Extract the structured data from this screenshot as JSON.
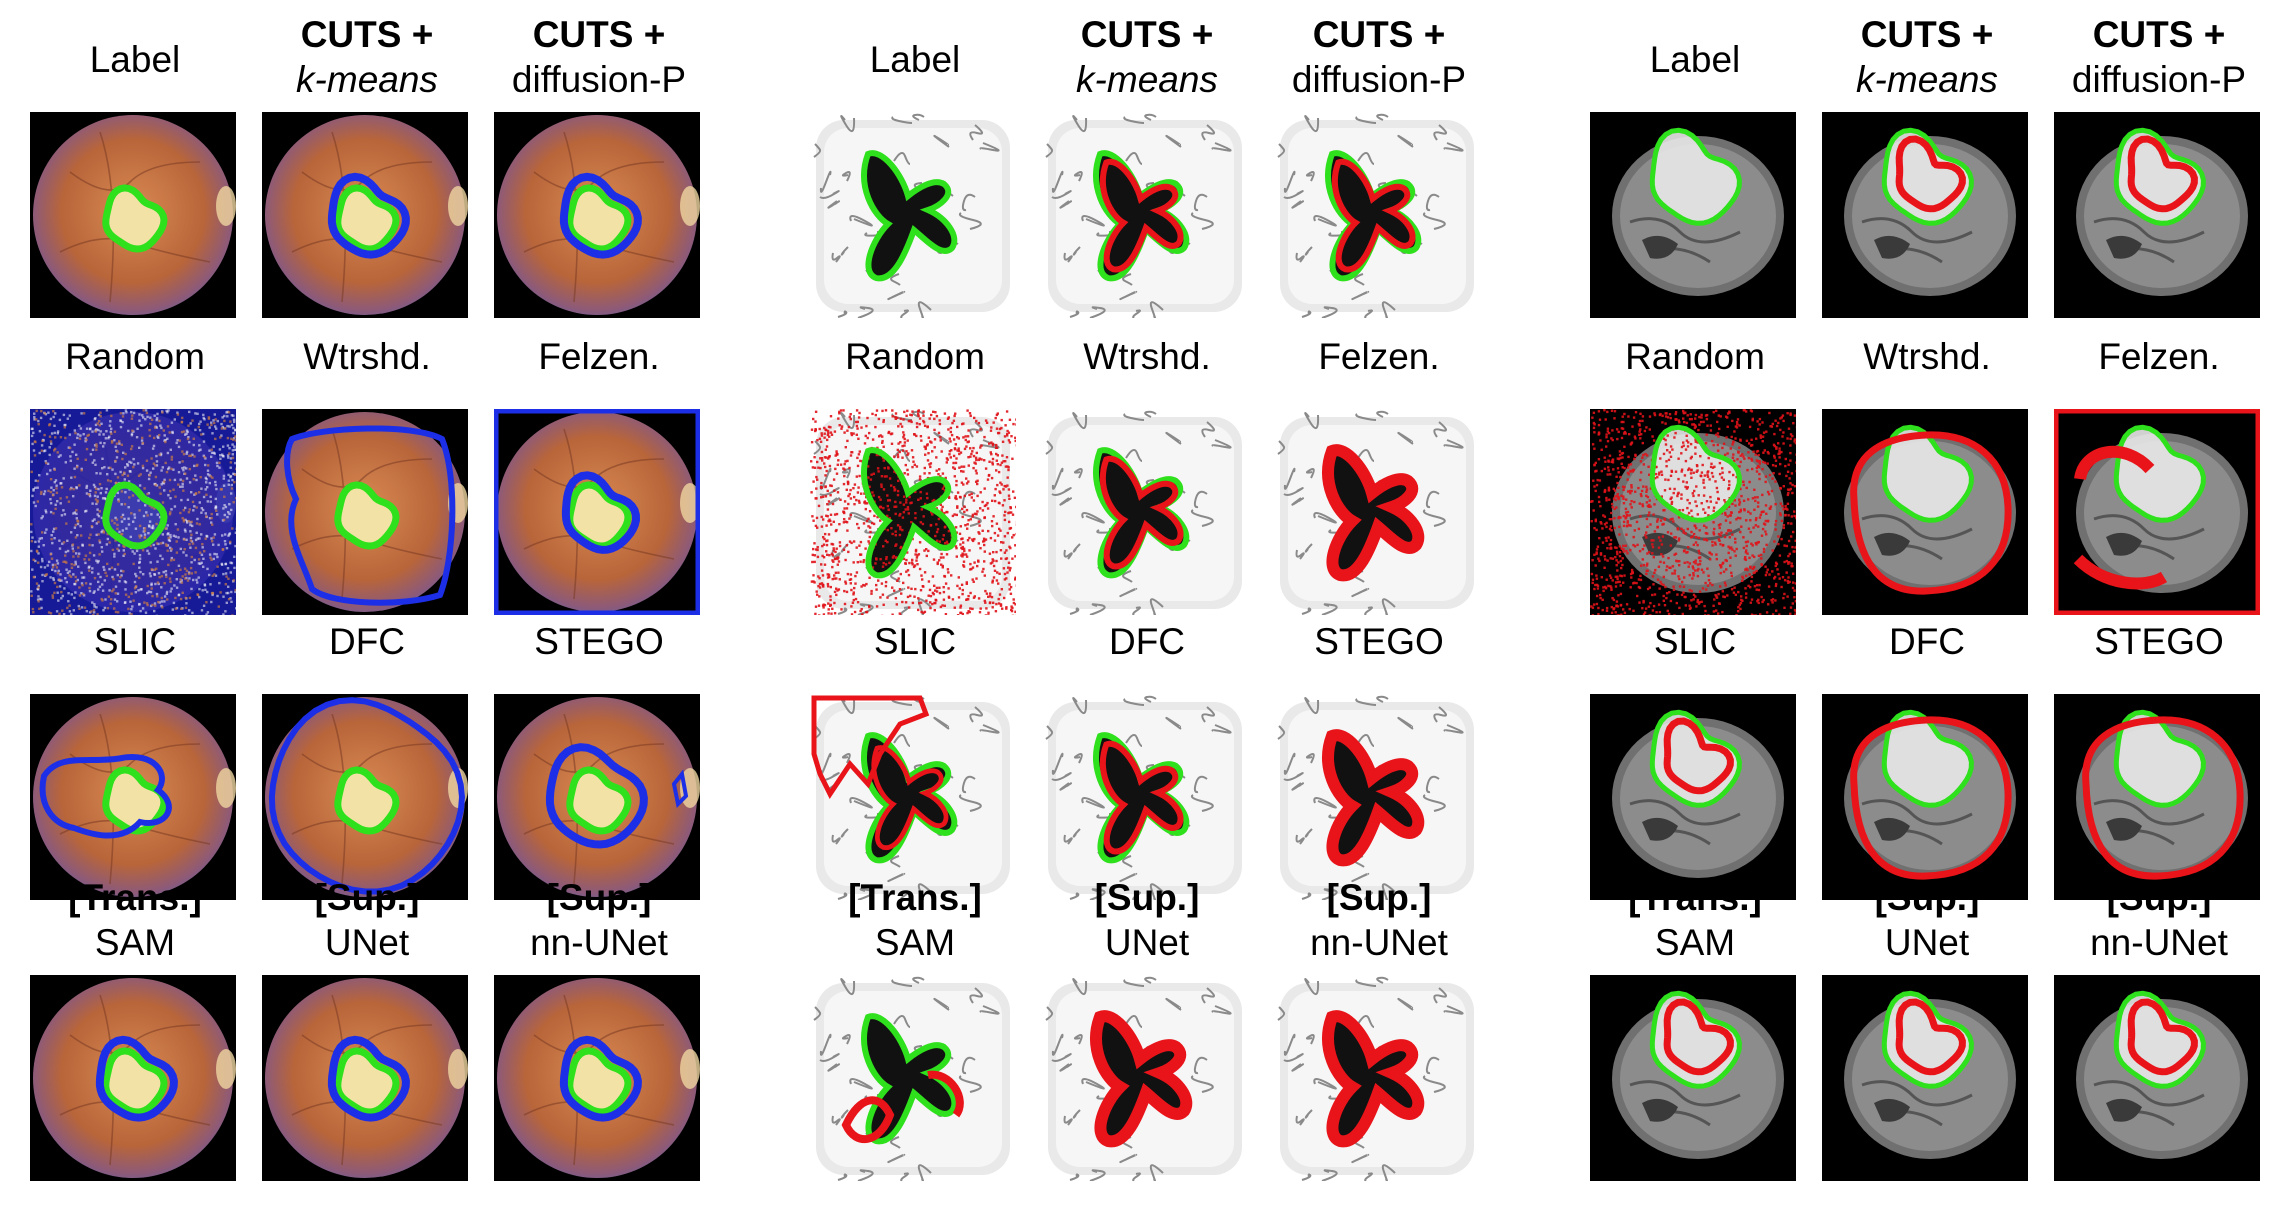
{
  "panels": [
    {
      "modality": "retina",
      "rows": [
        [
          {
            "name": "label",
            "lines": [
              "Label"
            ],
            "styles": [
              "n"
            ],
            "pred": "none"
          },
          {
            "name": "cuts-kmeans",
            "lines": [
              "CUTS +",
              "k-means"
            ],
            "styles": [
              "b",
              "i"
            ],
            "pred": "blue-tight"
          },
          {
            "name": "cuts-diffusion",
            "lines": [
              "CUTS +",
              "diffusion-P"
            ],
            "styles": [
              "b",
              "n"
            ],
            "pred": "blue-tight"
          }
        ],
        [
          {
            "name": "random",
            "lines": [
              "Random"
            ],
            "styles": [
              "n"
            ],
            "pred": "noise"
          },
          {
            "name": "watershed",
            "lines": [
              "Wtrshd."
            ],
            "styles": [
              "n"
            ],
            "pred": "blue-large"
          },
          {
            "name": "felzenszwalb",
            "lines": [
              "Felzen."
            ],
            "styles": [
              "n"
            ],
            "pred": "blue-border"
          }
        ],
        [
          {
            "name": "slic",
            "lines": [
              "SLIC"
            ],
            "styles": [
              "n"
            ],
            "pred": "blue-irregular"
          },
          {
            "name": "dfc",
            "lines": [
              "DFC"
            ],
            "styles": [
              "n"
            ],
            "pred": "blue-whole"
          },
          {
            "name": "stego",
            "lines": [
              "STEGO"
            ],
            "styles": [
              "n"
            ],
            "pred": "blue-medium"
          }
        ],
        [
          {
            "name": "sam",
            "lines": [
              "[Trans.]",
              "SAM"
            ],
            "styles": [
              "b",
              "n"
            ],
            "pred": "blue-tight"
          },
          {
            "name": "unet",
            "lines": [
              "[Sup.]",
              "UNet"
            ],
            "styles": [
              "b",
              "n"
            ],
            "pred": "blue-tight"
          },
          {
            "name": "nnunet",
            "lines": [
              "[Sup.]",
              "nn-UNet"
            ],
            "styles": [
              "b",
              "n"
            ],
            "pred": "blue-tight"
          }
        ]
      ]
    },
    {
      "modality": "brain-ventricles",
      "rows": [
        [
          {
            "name": "label",
            "lines": [
              "Label"
            ],
            "styles": [
              "n"
            ],
            "pred": "none"
          },
          {
            "name": "cuts-kmeans",
            "lines": [
              "CUTS +",
              "k-means"
            ],
            "styles": [
              "b",
              "i"
            ],
            "pred": "red-tight"
          },
          {
            "name": "cuts-diffusion",
            "lines": [
              "CUTS +",
              "diffusion-P"
            ],
            "styles": [
              "b",
              "n"
            ],
            "pred": "red-tight"
          }
        ],
        [
          {
            "name": "random",
            "lines": [
              "Random"
            ],
            "styles": [
              "n"
            ],
            "pred": "noise"
          },
          {
            "name": "watershed",
            "lines": [
              "Wtrshd."
            ],
            "styles": [
              "n"
            ],
            "pred": "red-tight"
          },
          {
            "name": "felzenszwalb",
            "lines": [
              "Felzen."
            ],
            "styles": [
              "n"
            ],
            "pred": "red-thick"
          }
        ],
        [
          {
            "name": "slic",
            "lines": [
              "SLIC"
            ],
            "styles": [
              "n"
            ],
            "pred": "red-irregular"
          },
          {
            "name": "dfc",
            "lines": [
              "DFC"
            ],
            "styles": [
              "n"
            ],
            "pred": "red-tight"
          },
          {
            "name": "stego",
            "lines": [
              "STEGO"
            ],
            "styles": [
              "n"
            ],
            "pred": "red-thick"
          }
        ],
        [
          {
            "name": "sam",
            "lines": [
              "[Trans.]",
              "SAM"
            ],
            "styles": [
              "b",
              "n"
            ],
            "pred": "red-partial"
          },
          {
            "name": "unet",
            "lines": [
              "[Sup.]",
              "UNet"
            ],
            "styles": [
              "b",
              "n"
            ],
            "pred": "red-thick"
          },
          {
            "name": "nnunet",
            "lines": [
              "[Sup.]",
              "nn-UNet"
            ],
            "styles": [
              "b",
              "n"
            ],
            "pred": "red-thick"
          }
        ]
      ]
    },
    {
      "modality": "brain-tumor",
      "rows": [
        [
          {
            "name": "label",
            "lines": [
              "Label"
            ],
            "styles": [
              "n"
            ],
            "pred": "none"
          },
          {
            "name": "cuts-kmeans",
            "lines": [
              "CUTS +",
              "k-means"
            ],
            "styles": [
              "b",
              "i"
            ],
            "pred": "red-inner"
          },
          {
            "name": "cuts-diffusion",
            "lines": [
              "CUTS +",
              "diffusion-P"
            ],
            "styles": [
              "b",
              "n"
            ],
            "pred": "red-inner"
          }
        ],
        [
          {
            "name": "random",
            "lines": [
              "Random"
            ],
            "styles": [
              "n"
            ],
            "pred": "noise"
          },
          {
            "name": "watershed",
            "lines": [
              "Wtrshd."
            ],
            "styles": [
              "n"
            ],
            "pred": "red-outer"
          },
          {
            "name": "felzenszwalb",
            "lines": [
              "Felzen."
            ],
            "styles": [
              "n"
            ],
            "pred": "red-border"
          }
        ],
        [
          {
            "name": "slic",
            "lines": [
              "SLIC"
            ],
            "styles": [
              "n"
            ],
            "pred": "red-inner"
          },
          {
            "name": "dfc",
            "lines": [
              "DFC"
            ],
            "styles": [
              "n"
            ],
            "pred": "red-outer"
          },
          {
            "name": "stego",
            "lines": [
              "STEGO"
            ],
            "styles": [
              "n"
            ],
            "pred": "red-outer"
          }
        ],
        [
          {
            "name": "sam",
            "lines": [
              "[Trans.]",
              "SAM"
            ],
            "styles": [
              "b",
              "n"
            ],
            "pred": "red-inner"
          },
          {
            "name": "unet",
            "lines": [
              "[Sup.]",
              "UNet"
            ],
            "styles": [
              "b",
              "n"
            ],
            "pred": "red-inner"
          },
          {
            "name": "nnunet",
            "lines": [
              "[Sup.]",
              "nn-UNet"
            ],
            "styles": [
              "b",
              "n"
            ],
            "pred": "red-inner"
          }
        ]
      ]
    }
  ],
  "colors": {
    "label_outline": "#2fe01c",
    "prediction_retina": "#1d2fe6",
    "prediction_mri": "#e8141a"
  }
}
